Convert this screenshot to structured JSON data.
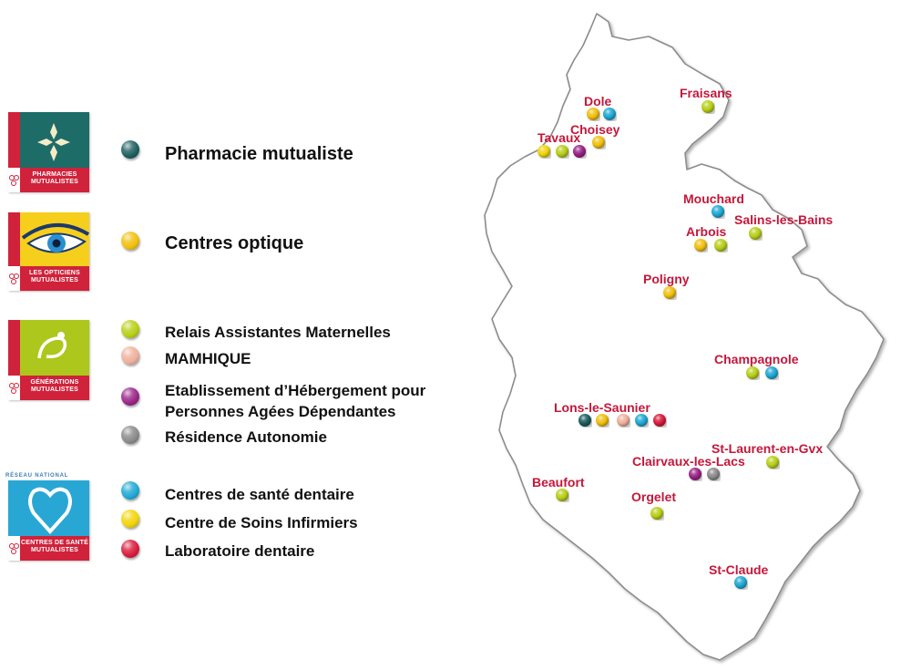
{
  "colors": {
    "teal": "#1b5e5e",
    "gold": "#f1bf0c",
    "lime": "#b8cf16",
    "salmon": "#efb09c",
    "purple": "#9a2488",
    "grey": "#8a8a8a",
    "cyan": "#1fa8d4",
    "yellow": "#f2d408",
    "red": "#d81c3b",
    "label_red": "#c4173a"
  },
  "logos": {
    "pharmacies": {
      "icon": "pharmacy-cross-icon",
      "line1": "PHARMACIES",
      "line2": "MUTUALISTES",
      "bg": "#1e6c68"
    },
    "opticiens": {
      "icon": "eye-icon",
      "line1": "LES OPTICIENS",
      "line2": "MUTUALISTES",
      "bg": "#f6cf1d"
    },
    "generations": {
      "icon": "swirl-icon",
      "line1": "GÉNÉRATIONS",
      "line2": "MUTUALISTES",
      "bg": "#adc71d"
    },
    "sante": {
      "icon": "tooth-heart-icon",
      "header": "RÉSEAU NATIONAL",
      "line1": "CENTRES DE SANTÉ",
      "line2": "MUTUALISTES",
      "bg": "#29a7d4"
    }
  },
  "legend": [
    {
      "key": "teal",
      "label": "Pharmacie mutualiste"
    },
    {
      "key": "gold",
      "label": "Centres optique"
    },
    {
      "key": "lime",
      "label": "Relais Assistantes Maternelles"
    },
    {
      "key": "salmon",
      "label": "MAMHIQUE"
    },
    {
      "key": "purple",
      "label": "Etablissement d’Hébergement pour Personnes Agées Dépendantes",
      "line1": "Etablissement d’Hébergement pour",
      "line2": "Personnes Agées Dépendantes"
    },
    {
      "key": "grey",
      "label": "Résidence Autonomie"
    },
    {
      "key": "cyan",
      "label": "Centres de santé dentaire"
    },
    {
      "key": "yellow",
      "label": "Centre de Soins Infirmiers"
    },
    {
      "key": "red",
      "label": "Laboratoire dentaire"
    }
  ],
  "cities": [
    {
      "name": "Dole",
      "dots": [
        "gold",
        "cyan"
      ]
    },
    {
      "name": "Choisey",
      "dots": [
        "gold"
      ]
    },
    {
      "name": "Tavaux",
      "dots": [
        "yellow",
        "lime",
        "purple"
      ]
    },
    {
      "name": "Fraisans",
      "dots": [
        "lime"
      ]
    },
    {
      "name": "Mouchard",
      "dots": [
        "cyan"
      ]
    },
    {
      "name": "Salins-les-Bains",
      "dots": [
        "lime"
      ]
    },
    {
      "name": "Arbois",
      "dots": [
        "gold",
        "lime"
      ]
    },
    {
      "name": "Poligny",
      "dots": [
        "gold"
      ]
    },
    {
      "name": "Champagnole",
      "dots": [
        "lime",
        "cyan"
      ]
    },
    {
      "name": "Lons-le-Saunier",
      "dots": [
        "teal",
        "gold",
        "salmon",
        "cyan",
        "red"
      ]
    },
    {
      "name": "St-Laurent-en-Gvx",
      "dots": [
        "lime"
      ]
    },
    {
      "name": "Clairvaux-les-Lacs",
      "dots": [
        "purple",
        "grey"
      ]
    },
    {
      "name": "Beaufort",
      "dots": [
        "lime"
      ]
    },
    {
      "name": "Orgelet",
      "dots": [
        "lime"
      ]
    },
    {
      "name": "St-Claude",
      "dots": [
        "cyan"
      ]
    }
  ]
}
